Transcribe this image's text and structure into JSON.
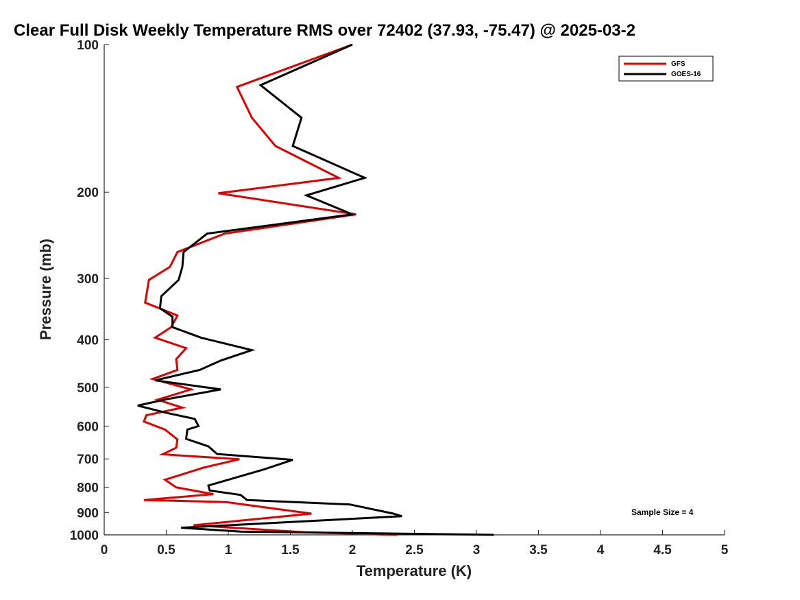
{
  "chart_data": {
    "type": "line",
    "title": "Clear Full Disk Weekly Temperature RMS over 72402 (37.93, -75.47) @ 2025-03-2",
    "xlabel": "Temperature (K)",
    "ylabel": "Pressure (mb)",
    "xlim": [
      0,
      5
    ],
    "ylim": [
      100,
      1000
    ],
    "yscale": "log",
    "xticks": [
      0,
      0.5,
      1,
      1.5,
      2,
      2.5,
      3,
      3.5,
      4,
      4.5,
      5
    ],
    "xtick_labels": [
      "0",
      "0.5",
      "1",
      "1.5",
      "2",
      "2.5",
      "3",
      "3.5",
      "4",
      "4.5",
      "5"
    ],
    "yticks": [
      100,
      200,
      300,
      400,
      500,
      600,
      700,
      800,
      900,
      1000
    ],
    "ytick_labels": [
      "100",
      "200",
      "300",
      "400",
      "500",
      "600",
      "700",
      "800",
      "900",
      "1000"
    ],
    "grid": false,
    "legend_position": "top-right",
    "annotation": "Sample Size = 4",
    "series": [
      {
        "name": "GFS",
        "color": "#e00000",
        "points": [
          [
            2.0,
            100
          ],
          [
            1.07,
            122
          ],
          [
            1.19,
            141
          ],
          [
            1.38,
            161
          ],
          [
            1.89,
            187
          ],
          [
            0.92,
            201
          ],
          [
            2.03,
            222
          ],
          [
            0.97,
            243
          ],
          [
            0.59,
            265
          ],
          [
            0.53,
            284
          ],
          [
            0.36,
            302
          ],
          [
            0.33,
            336
          ],
          [
            0.59,
            357
          ],
          [
            0.54,
            377
          ],
          [
            0.41,
            396
          ],
          [
            0.66,
            416
          ],
          [
            0.58,
            438
          ],
          [
            0.59,
            461
          ],
          [
            0.39,
            481
          ],
          [
            0.7,
            505
          ],
          [
            0.43,
            530
          ],
          [
            0.63,
            550
          ],
          [
            0.34,
            570
          ],
          [
            0.32,
            587
          ],
          [
            0.49,
            610
          ],
          [
            0.59,
            639
          ],
          [
            0.58,
            664
          ],
          [
            0.47,
            685
          ],
          [
            1.09,
            701
          ],
          [
            0.8,
            729
          ],
          [
            0.49,
            772
          ],
          [
            0.58,
            800
          ],
          [
            0.88,
            826
          ],
          [
            0.32,
            849
          ],
          [
            0.98,
            857
          ],
          [
            1.67,
            905
          ],
          [
            0.72,
            956
          ],
          [
            1.62,
            988
          ],
          [
            2.36,
            1000
          ]
        ]
      },
      {
        "name": "GOES-16",
        "color": "#000000",
        "points": [
          [
            2.0,
            100
          ],
          [
            1.26,
            121
          ],
          [
            1.59,
            141
          ],
          [
            1.52,
            161
          ],
          [
            2.1,
            187
          ],
          [
            1.63,
            203
          ],
          [
            2.0,
            222
          ],
          [
            0.83,
            243
          ],
          [
            0.64,
            265
          ],
          [
            0.63,
            284
          ],
          [
            0.6,
            302
          ],
          [
            0.46,
            326
          ],
          [
            0.45,
            345
          ],
          [
            0.55,
            359
          ],
          [
            0.55,
            377
          ],
          [
            0.78,
            396
          ],
          [
            1.19,
            420
          ],
          [
            0.94,
            441
          ],
          [
            0.77,
            461
          ],
          [
            0.41,
            484
          ],
          [
            0.94,
            505
          ],
          [
            0.5,
            529
          ],
          [
            0.27,
            545
          ],
          [
            0.49,
            563
          ],
          [
            0.73,
            580
          ],
          [
            0.76,
            600
          ],
          [
            0.67,
            610
          ],
          [
            0.66,
            637
          ],
          [
            0.84,
            660
          ],
          [
            0.91,
            684
          ],
          [
            1.52,
            703
          ],
          [
            1.29,
            735
          ],
          [
            0.84,
            793
          ],
          [
            0.85,
            812
          ],
          [
            1.1,
            829
          ],
          [
            1.15,
            849
          ],
          [
            1.98,
            867
          ],
          [
            2.33,
            905
          ],
          [
            2.4,
            916
          ],
          [
            0.62,
            967
          ],
          [
            1.1,
            985
          ],
          [
            3.14,
            1000
          ]
        ]
      }
    ]
  }
}
